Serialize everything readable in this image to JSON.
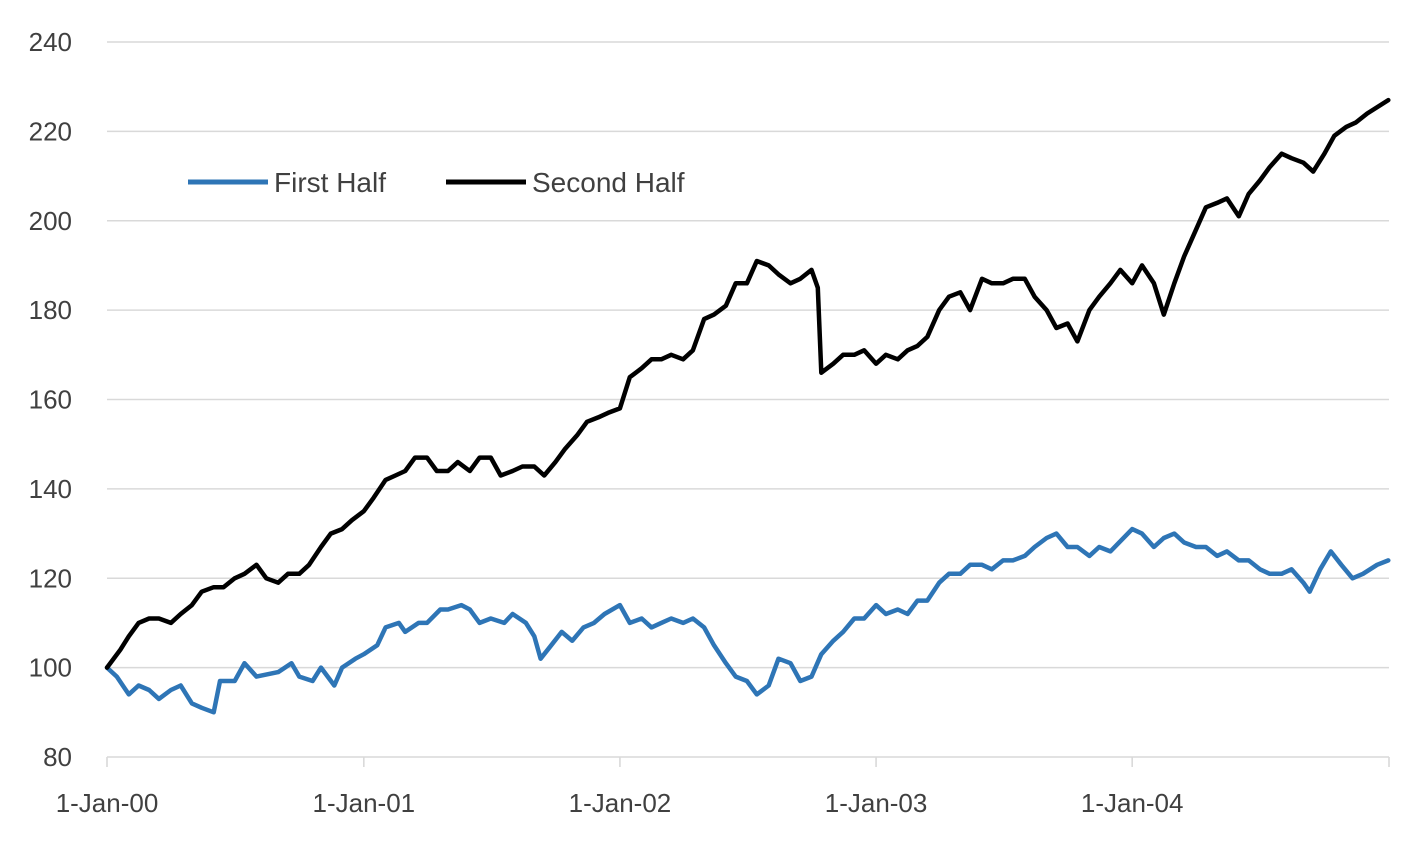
{
  "chart_data": {
    "type": "line",
    "title": "",
    "xlabel": "",
    "ylabel": "",
    "ylim": [
      80,
      240
    ],
    "xlim": [
      "2000-01-01",
      "2005-01-01"
    ],
    "yticks": [
      "80",
      "100",
      "120",
      "140",
      "160",
      "180",
      "200",
      "220",
      "240"
    ],
    "xticks": [
      "1-Jan-00",
      "1-Jan-01",
      "1-Jan-02",
      "1-Jan-03",
      "1-Jan-04"
    ],
    "grid": "horizontal",
    "legend": "upper-left, horizontal",
    "series": [
      {
        "name": "First Half",
        "color": "#2e75b6",
        "points": [
          [
            "2000-01-01",
            100
          ],
          [
            "2000-01-15",
            98
          ],
          [
            "2000-02-01",
            94
          ],
          [
            "2000-02-15",
            96
          ],
          [
            "2000-03-01",
            95
          ],
          [
            "2000-03-15",
            93
          ],
          [
            "2000-04-01",
            95
          ],
          [
            "2000-04-15",
            96
          ],
          [
            "2000-05-01",
            92
          ],
          [
            "2000-05-15",
            91
          ],
          [
            "2000-06-01",
            90
          ],
          [
            "2000-06-10",
            97
          ],
          [
            "2000-07-01",
            97
          ],
          [
            "2000-07-15",
            101
          ],
          [
            "2000-08-01",
            98
          ],
          [
            "2000-09-01",
            99
          ],
          [
            "2000-09-20",
            101
          ],
          [
            "2000-10-01",
            98
          ],
          [
            "2000-10-20",
            97
          ],
          [
            "2000-11-01",
            100
          ],
          [
            "2000-11-20",
            96
          ],
          [
            "2000-12-01",
            100
          ],
          [
            "2000-12-20",
            102
          ],
          [
            "2001-01-01",
            103
          ],
          [
            "2001-01-20",
            105
          ],
          [
            "2001-02-01",
            109
          ],
          [
            "2001-02-20",
            110
          ],
          [
            "2001-03-01",
            108
          ],
          [
            "2001-03-20",
            110
          ],
          [
            "2001-04-01",
            110
          ],
          [
            "2001-04-20",
            113
          ],
          [
            "2001-05-01",
            113
          ],
          [
            "2001-05-20",
            114
          ],
          [
            "2001-06-01",
            113
          ],
          [
            "2001-06-15",
            110
          ],
          [
            "2001-07-01",
            111
          ],
          [
            "2001-07-20",
            110
          ],
          [
            "2001-08-01",
            112
          ],
          [
            "2001-08-20",
            110
          ],
          [
            "2001-09-01",
            107
          ],
          [
            "2001-09-10",
            102
          ],
          [
            "2001-09-25",
            105
          ],
          [
            "2001-10-10",
            108
          ],
          [
            "2001-10-25",
            106
          ],
          [
            "2001-11-10",
            109
          ],
          [
            "2001-11-25",
            110
          ],
          [
            "2001-12-10",
            112
          ],
          [
            "2002-01-01",
            114
          ],
          [
            "2002-01-15",
            110
          ],
          [
            "2002-02-01",
            111
          ],
          [
            "2002-02-15",
            109
          ],
          [
            "2002-03-01",
            110
          ],
          [
            "2002-03-15",
            111
          ],
          [
            "2002-04-01",
            110
          ],
          [
            "2002-04-15",
            111
          ],
          [
            "2002-05-01",
            109
          ],
          [
            "2002-05-15",
            105
          ],
          [
            "2002-06-01",
            101
          ],
          [
            "2002-06-15",
            98
          ],
          [
            "2002-07-01",
            97
          ],
          [
            "2002-07-15",
            94
          ],
          [
            "2002-08-01",
            96
          ],
          [
            "2002-08-15",
            102
          ],
          [
            "2002-09-01",
            101
          ],
          [
            "2002-09-15",
            97
          ],
          [
            "2002-10-01",
            98
          ],
          [
            "2002-10-15",
            103
          ],
          [
            "2002-11-01",
            106
          ],
          [
            "2002-11-15",
            108
          ],
          [
            "2002-12-01",
            111
          ],
          [
            "2002-12-15",
            111
          ],
          [
            "2003-01-01",
            114
          ],
          [
            "2003-01-15",
            112
          ],
          [
            "2003-02-01",
            113
          ],
          [
            "2003-02-15",
            112
          ],
          [
            "2003-03-01",
            115
          ],
          [
            "2003-03-15",
            115
          ],
          [
            "2003-04-01",
            119
          ],
          [
            "2003-04-15",
            121
          ],
          [
            "2003-05-01",
            121
          ],
          [
            "2003-05-15",
            123
          ],
          [
            "2003-06-01",
            123
          ],
          [
            "2003-06-15",
            122
          ],
          [
            "2003-07-01",
            124
          ],
          [
            "2003-07-15",
            124
          ],
          [
            "2003-08-01",
            125
          ],
          [
            "2003-08-15",
            127
          ],
          [
            "2003-09-01",
            129
          ],
          [
            "2003-09-15",
            130
          ],
          [
            "2003-10-01",
            127
          ],
          [
            "2003-10-15",
            127
          ],
          [
            "2003-11-01",
            125
          ],
          [
            "2003-11-15",
            127
          ],
          [
            "2003-12-01",
            126
          ],
          [
            "2004-01-01",
            131
          ],
          [
            "2004-01-15",
            130
          ],
          [
            "2004-02-01",
            127
          ],
          [
            "2004-02-15",
            129
          ],
          [
            "2004-03-01",
            130
          ],
          [
            "2004-03-15",
            128
          ],
          [
            "2004-04-01",
            127
          ],
          [
            "2004-04-15",
            127
          ],
          [
            "2004-05-01",
            125
          ],
          [
            "2004-05-15",
            126
          ],
          [
            "2004-06-01",
            124
          ],
          [
            "2004-06-15",
            124
          ],
          [
            "2004-07-01",
            122
          ],
          [
            "2004-07-15",
            121
          ],
          [
            "2004-08-01",
            121
          ],
          [
            "2004-08-15",
            122
          ],
          [
            "2004-09-01",
            119
          ],
          [
            "2004-09-10",
            117
          ],
          [
            "2004-09-25",
            122
          ],
          [
            "2004-10-10",
            126
          ],
          [
            "2004-10-25",
            123
          ],
          [
            "2004-11-10",
            120
          ],
          [
            "2004-11-25",
            121
          ],
          [
            "2004-12-15",
            123
          ],
          [
            "2004-12-31",
            124
          ]
        ]
      },
      {
        "name": "Second Half",
        "color": "#000000",
        "points": [
          [
            "2000-01-01",
            100
          ],
          [
            "2000-01-20",
            104
          ],
          [
            "2000-02-01",
            107
          ],
          [
            "2000-02-15",
            110
          ],
          [
            "2000-03-01",
            111
          ],
          [
            "2000-03-15",
            111
          ],
          [
            "2000-04-01",
            110
          ],
          [
            "2000-04-15",
            112
          ],
          [
            "2000-05-01",
            114
          ],
          [
            "2000-05-15",
            117
          ],
          [
            "2000-06-01",
            118
          ],
          [
            "2000-06-15",
            118
          ],
          [
            "2000-07-01",
            120
          ],
          [
            "2000-07-15",
            121
          ],
          [
            "2000-08-01",
            123
          ],
          [
            "2000-08-15",
            120
          ],
          [
            "2000-09-01",
            119
          ],
          [
            "2000-09-15",
            121
          ],
          [
            "2000-10-01",
            121
          ],
          [
            "2000-10-15",
            123
          ],
          [
            "2000-11-01",
            127
          ],
          [
            "2000-11-15",
            130
          ],
          [
            "2000-12-01",
            131
          ],
          [
            "2000-12-15",
            133
          ],
          [
            "2001-01-01",
            135
          ],
          [
            "2001-01-15",
            138
          ],
          [
            "2001-02-01",
            142
          ],
          [
            "2001-02-15",
            143
          ],
          [
            "2001-03-01",
            144
          ],
          [
            "2001-03-15",
            147
          ],
          [
            "2001-04-01",
            147
          ],
          [
            "2001-04-15",
            144
          ],
          [
            "2001-05-01",
            144
          ],
          [
            "2001-05-15",
            146
          ],
          [
            "2001-06-01",
            144
          ],
          [
            "2001-06-15",
            147
          ],
          [
            "2001-07-01",
            147
          ],
          [
            "2001-07-15",
            143
          ],
          [
            "2001-08-01",
            144
          ],
          [
            "2001-08-15",
            145
          ],
          [
            "2001-09-01",
            145
          ],
          [
            "2001-09-15",
            143
          ],
          [
            "2001-10-01",
            146
          ],
          [
            "2001-10-15",
            149
          ],
          [
            "2001-11-01",
            152
          ],
          [
            "2001-11-15",
            155
          ],
          [
            "2001-12-01",
            156
          ],
          [
            "2001-12-15",
            157
          ],
          [
            "2002-01-01",
            158
          ],
          [
            "2002-01-15",
            165
          ],
          [
            "2002-02-01",
            167
          ],
          [
            "2002-02-15",
            169
          ],
          [
            "2002-03-01",
            169
          ],
          [
            "2002-03-15",
            170
          ],
          [
            "2002-04-01",
            169
          ],
          [
            "2002-04-15",
            171
          ],
          [
            "2002-05-01",
            178
          ],
          [
            "2002-05-15",
            179
          ],
          [
            "2002-06-01",
            181
          ],
          [
            "2002-06-15",
            186
          ],
          [
            "2002-07-01",
            186
          ],
          [
            "2002-07-15",
            191
          ],
          [
            "2002-08-01",
            190
          ],
          [
            "2002-08-15",
            188
          ],
          [
            "2002-09-01",
            186
          ],
          [
            "2002-09-15",
            187
          ],
          [
            "2002-10-01",
            189
          ],
          [
            "2002-10-10",
            185
          ],
          [
            "2002-10-15",
            166
          ],
          [
            "2002-11-01",
            168
          ],
          [
            "2002-11-15",
            170
          ],
          [
            "2002-12-01",
            170
          ],
          [
            "2002-12-15",
            171
          ],
          [
            "2003-01-01",
            168
          ],
          [
            "2003-01-15",
            170
          ],
          [
            "2003-02-01",
            169
          ],
          [
            "2003-02-15",
            171
          ],
          [
            "2003-03-01",
            172
          ],
          [
            "2003-03-15",
            174
          ],
          [
            "2003-04-01",
            180
          ],
          [
            "2003-04-15",
            183
          ],
          [
            "2003-05-01",
            184
          ],
          [
            "2003-05-15",
            180
          ],
          [
            "2003-06-01",
            187
          ],
          [
            "2003-06-15",
            186
          ],
          [
            "2003-07-01",
            186
          ],
          [
            "2003-07-15",
            187
          ],
          [
            "2003-08-01",
            187
          ],
          [
            "2003-08-15",
            183
          ],
          [
            "2003-09-01",
            180
          ],
          [
            "2003-09-15",
            176
          ],
          [
            "2003-10-01",
            177
          ],
          [
            "2003-10-15",
            173
          ],
          [
            "2003-11-01",
            180
          ],
          [
            "2003-11-15",
            183
          ],
          [
            "2003-12-01",
            186
          ],
          [
            "2003-12-15",
            189
          ],
          [
            "2004-01-01",
            186
          ],
          [
            "2004-01-15",
            190
          ],
          [
            "2004-02-01",
            186
          ],
          [
            "2004-02-15",
            179
          ],
          [
            "2004-03-01",
            186
          ],
          [
            "2004-03-15",
            192
          ],
          [
            "2004-04-01",
            198
          ],
          [
            "2004-04-15",
            203
          ],
          [
            "2004-05-01",
            204
          ],
          [
            "2004-05-15",
            205
          ],
          [
            "2004-06-01",
            201
          ],
          [
            "2004-06-15",
            206
          ],
          [
            "2004-07-01",
            209
          ],
          [
            "2004-07-15",
            212
          ],
          [
            "2004-08-01",
            215
          ],
          [
            "2004-08-15",
            214
          ],
          [
            "2004-09-01",
            213
          ],
          [
            "2004-09-15",
            211
          ],
          [
            "2004-10-01",
            215
          ],
          [
            "2004-10-15",
            219
          ],
          [
            "2004-11-01",
            221
          ],
          [
            "2004-11-15",
            222
          ],
          [
            "2004-12-01",
            224
          ],
          [
            "2004-12-31",
            227
          ]
        ]
      }
    ]
  }
}
